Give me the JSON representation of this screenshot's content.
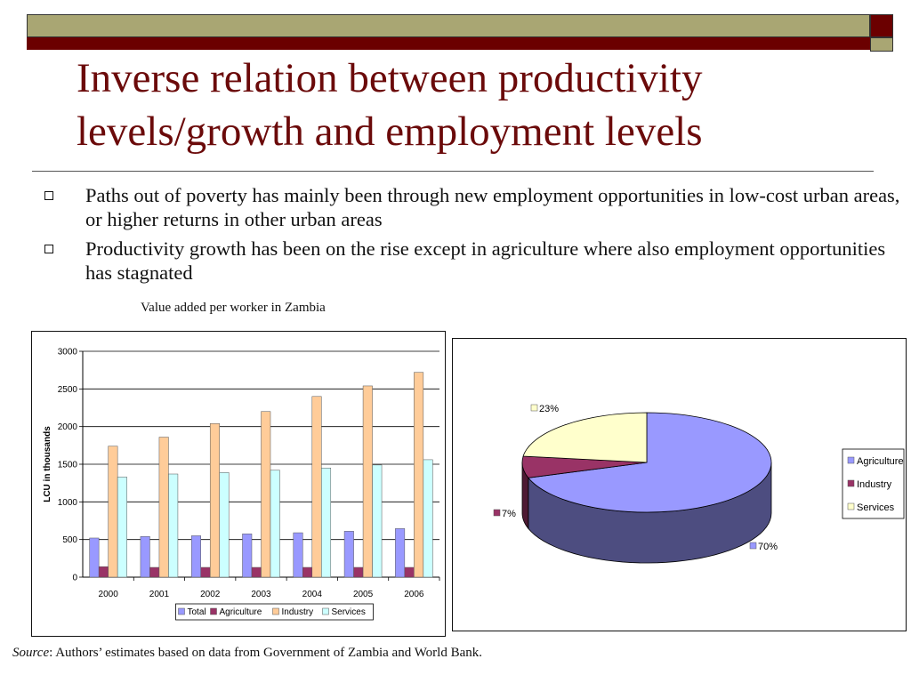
{
  "slide": {
    "title_line1": "Inverse relation between productivity",
    "title_line2": "levels/growth and employment levels",
    "bullets": [
      "Paths out of poverty has mainly been through new employment opportunities in low-cost urban areas, or higher returns in other urban areas",
      "Productivity growth has been on the rise except in agriculture where also employment opportunities has stagnated"
    ],
    "chart_caption": "Value added per worker in Zambia",
    "source_label": "Source",
    "source_text": ": Authors’ estimates based on data from Government of Zambia and World Bank."
  },
  "colors": {
    "title": "#6b0a0a",
    "header_olive": "#a9a673",
    "header_maroon": "#6b0000"
  },
  "chart_data": [
    {
      "type": "bar",
      "title": "",
      "xlabel": "",
      "ylabel": "LCU in thousands",
      "ylim": [
        0,
        3000
      ],
      "yticks": [
        0,
        500,
        1000,
        1500,
        2000,
        2500,
        3000
      ],
      "grid": true,
      "legend_position": "bottom",
      "categories": [
        "2000",
        "2001",
        "2002",
        "2003",
        "2004",
        "2005",
        "2006"
      ],
      "series": [
        {
          "name": "Total",
          "color": "#9999ff",
          "values": [
            520,
            540,
            550,
            575,
            590,
            610,
            645
          ]
        },
        {
          "name": "Agriculture",
          "color": "#993366",
          "values": [
            140,
            130,
            130,
            130,
            130,
            130,
            130
          ]
        },
        {
          "name": "Industry",
          "color": "#ffcc99",
          "values": [
            1740,
            1860,
            2040,
            2200,
            2400,
            2540,
            2720
          ]
        },
        {
          "name": "Services",
          "color": "#ccffff",
          "values": [
            1330,
            1370,
            1390,
            1420,
            1450,
            1490,
            1560
          ]
        }
      ]
    },
    {
      "type": "pie",
      "style": "3d",
      "legend_position": "right",
      "slices": [
        {
          "name": "Agriculture",
          "value": 70,
          "label": "70%",
          "color": "#9999ff",
          "side_color": "#4d4d80"
        },
        {
          "name": "Industry",
          "value": 7,
          "label": "7%",
          "color": "#993366",
          "side_color": "#4d1a33"
        },
        {
          "name": "Services",
          "value": 23,
          "label": "23%",
          "color": "#ffffcc",
          "side_color": "#808066"
        }
      ]
    }
  ]
}
